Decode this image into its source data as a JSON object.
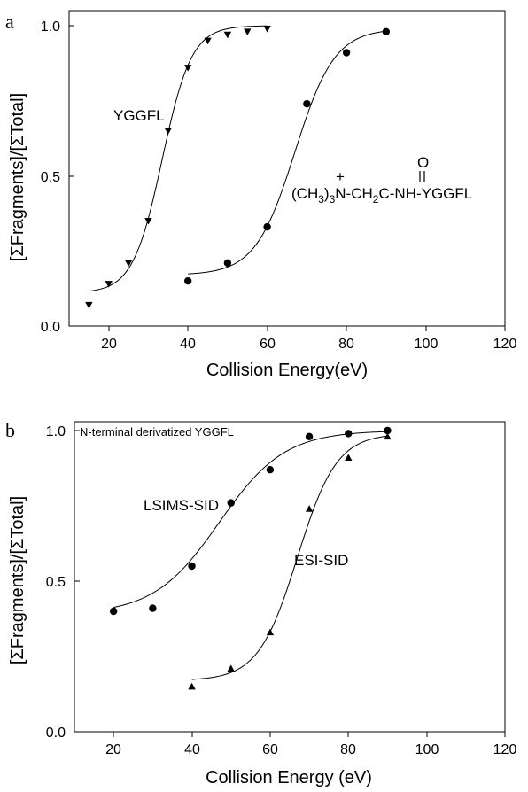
{
  "chart_data": [
    {
      "type": "scatter",
      "panel_label": "a",
      "xlabel": "Collision Energy(eV)",
      "ylabel": "[ΣFragments]/[ΣTotal]",
      "xlim": [
        10,
        120
      ],
      "ylim": [
        0,
        1.05
      ],
      "xticks": [
        "20",
        "40",
        "60",
        "80",
        "100",
        "120"
      ],
      "yticks": [
        "0.0",
        "0.5",
        "1.0"
      ],
      "grid": false,
      "series": [
        {
          "name": "YGGFL",
          "marker": "triangle-down",
          "x": [
            15,
            20,
            25,
            30,
            35,
            40,
            45,
            50,
            55,
            60
          ],
          "y": [
            0.07,
            0.14,
            0.21,
            0.35,
            0.65,
            0.86,
            0.95,
            0.97,
            0.98,
            0.99
          ],
          "fit": {
            "bottom": 0.11,
            "top": 1.0,
            "x0": 33.5,
            "k": 0.27,
            "xrange": [
              15,
              60
            ]
          }
        },
        {
          "name": "(CH3)3N-CH2C-NH-YGGFL",
          "marker": "circle",
          "x": [
            40,
            50,
            60,
            70,
            80,
            90
          ],
          "y": [
            0.15,
            0.21,
            0.33,
            0.74,
            0.91,
            0.98
          ],
          "fit": {
            "bottom": 0.17,
            "top": 0.99,
            "x0": 67,
            "k": 0.2,
            "xrange": [
              40,
              90
            ]
          }
        }
      ],
      "formula": {
        "charge": "+",
        "carbonyl_o": "O",
        "part1": "(CH",
        "sub1": "3",
        "part2": ")",
        "sub2": "3",
        "part3": "N-CH",
        "sub3": "2",
        "part4": "C-NH-YGGFL"
      }
    },
    {
      "type": "scatter",
      "panel_label": "b",
      "title": "N-terminal derivatized YGGFL",
      "xlabel": "Collision Energy (eV)",
      "ylabel": "[ΣFragments]/[ΣTotal]",
      "xlim": [
        10,
        120
      ],
      "ylim": [
        0,
        1.05
      ],
      "xticks": [
        "20",
        "40",
        "60",
        "80",
        "100",
        "120"
      ],
      "yticks": [
        "0.0",
        "0.5",
        "1.0"
      ],
      "grid": false,
      "series": [
        {
          "name": "LSIMS-SID",
          "marker": "circle",
          "x": [
            20,
            30,
            40,
            50,
            60,
            70,
            80,
            90
          ],
          "y": [
            0.4,
            0.41,
            0.55,
            0.76,
            0.87,
            0.98,
            0.99,
            1.0
          ],
          "fit": {
            "bottom": 0.39,
            "top": 1.0,
            "x0": 47,
            "k": 0.12,
            "xrange": [
              20,
              90
            ]
          }
        },
        {
          "name": "ESI-SID",
          "marker": "triangle-up",
          "x": [
            40,
            50,
            60,
            70,
            80,
            90
          ],
          "y": [
            0.15,
            0.21,
            0.33,
            0.74,
            0.91,
            0.98
          ],
          "fit": {
            "bottom": 0.17,
            "top": 0.99,
            "x0": 67,
            "k": 0.2,
            "xrange": [
              40,
              90
            ]
          }
        }
      ]
    }
  ]
}
